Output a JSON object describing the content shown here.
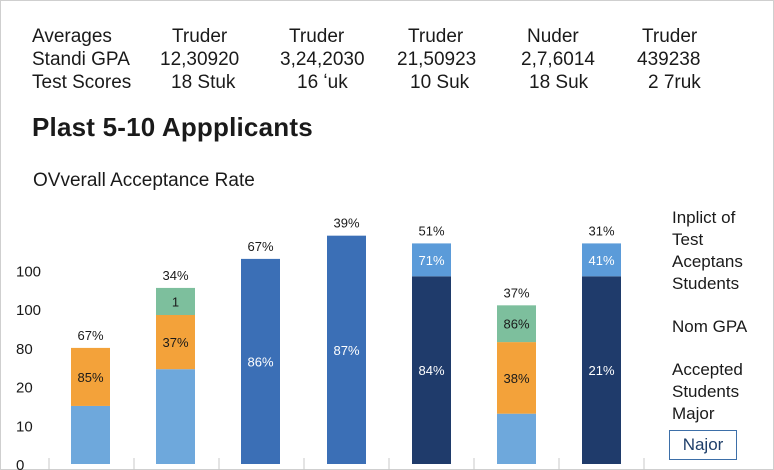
{
  "stats_table": {
    "row_labels": [
      "Averages",
      "Standi GPA",
      "Test Scores"
    ],
    "columns": [
      {
        "header": "Truder",
        "gpa": "12,30920",
        "scores": "18 Stuk"
      },
      {
        "header": "Truder",
        "gpa": "3,24,2030",
        "scores": "16 ʻuk"
      },
      {
        "header": "Truder",
        "gpa": "21,50923",
        "scores": "10 Suk"
      },
      {
        "header": "Nuder",
        "gpa": "2,7,6014",
        "scores": "18 Suk"
      },
      {
        "header": "Truder",
        "gpa": "439238",
        "scores": "2 7ruk"
      }
    ]
  },
  "title": "Plast 5-10 Appplicants",
  "subtitle": "OVverall Acceptance Rate",
  "legend": {
    "items": [
      "Inplict of\nTest\nAceptans\nStudents",
      "Nom GPA",
      "Accepted\nStudents\nMajor"
    ],
    "button_label": "Najor"
  },
  "colors": {
    "light_blue": "#6ea8dc",
    "orange": "#f3a23a",
    "teal": "#7dbf9d",
    "mid_blue": "#3b6fb6",
    "navy": "#1f3b6b",
    "sky": "#5b9bd9"
  },
  "chart_data": {
    "type": "bar",
    "stacked": true,
    "y_tick_labels": [
      "0",
      "10",
      "20",
      "80",
      "100",
      "100"
    ],
    "grid": false,
    "bars": [
      {
        "top_label": "67%",
        "segments": [
          {
            "value": 1.5,
            "color": "light_blue",
            "label": ""
          },
          {
            "value": 1.5,
            "color": "orange",
            "label": "85%"
          }
        ]
      },
      {
        "top_label": "34%",
        "segments": [
          {
            "value": 2.45,
            "color": "light_blue",
            "label": ""
          },
          {
            "value": 1.4,
            "color": "orange",
            "label": "37%"
          },
          {
            "value": 0.7,
            "color": "teal",
            "label": "1"
          }
        ]
      },
      {
        "top_label": "67%",
        "segments": [
          {
            "value": 5.3,
            "color": "mid_blue",
            "label": "86%"
          }
        ]
      },
      {
        "top_label": "39%",
        "segments": [
          {
            "value": 5.9,
            "color": "mid_blue",
            "label": "87%"
          }
        ]
      },
      {
        "top_label": "51%",
        "segments": [
          {
            "value": 4.85,
            "color": "navy",
            "label": "84%"
          },
          {
            "value": 0.85,
            "color": "sky",
            "label": "71%"
          }
        ]
      },
      {
        "top_label": "37%",
        "segments": [
          {
            "value": 1.3,
            "color": "light_blue",
            "label": ""
          },
          {
            "value": 1.85,
            "color": "orange",
            "label": "38%"
          },
          {
            "value": 0.95,
            "color": "teal",
            "label": "86%"
          }
        ]
      },
      {
        "top_label": "31%",
        "segments": [
          {
            "value": 4.85,
            "color": "navy",
            "label": "21%"
          },
          {
            "value": 0.85,
            "color": "sky",
            "label": "41%"
          }
        ]
      }
    ]
  }
}
